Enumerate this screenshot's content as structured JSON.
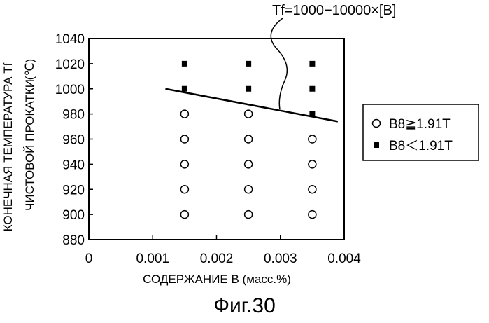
{
  "chart_data": {
    "type": "scatter",
    "xlabel": "СОДЕРЖАНИЕ В (масс.%)",
    "ylabel_line1": "КОНЕЧНАЯ ТЕМПЕРАТУРА Tf",
    "ylabel_line2": "ЧИСТОВОЙ ПРОКАТКИ",
    "ylabel_unit": "(℃)",
    "xlim": [
      0,
      0.004
    ],
    "ylim": [
      880,
      1040
    ],
    "x_ticks": [
      0,
      0.001,
      0.002,
      0.003,
      0.004
    ],
    "x_tick_labels": [
      "0",
      "0.001",
      "0.002",
      "0.003",
      "0.004"
    ],
    "y_ticks": [
      880,
      900,
      920,
      940,
      960,
      980,
      1000,
      1020,
      1040
    ],
    "y_tick_labels": [
      "880",
      "900",
      "920",
      "940",
      "960",
      "980",
      "1000",
      "1020",
      "1040"
    ],
    "series": [
      {
        "name": "B8≧1.91T",
        "marker": "open-circle",
        "points": [
          [
            0.0015,
            900
          ],
          [
            0.0015,
            920
          ],
          [
            0.0015,
            940
          ],
          [
            0.0015,
            960
          ],
          [
            0.0015,
            980
          ],
          [
            0.0025,
            900
          ],
          [
            0.0025,
            920
          ],
          [
            0.0025,
            940
          ],
          [
            0.0025,
            960
          ],
          [
            0.0025,
            980
          ],
          [
            0.0035,
            900
          ],
          [
            0.0035,
            920
          ],
          [
            0.0035,
            940
          ],
          [
            0.0035,
            960
          ]
        ]
      },
      {
        "name": "B8＜1.91T",
        "marker": "filled-square",
        "points": [
          [
            0.0015,
            1000
          ],
          [
            0.0015,
            1020
          ],
          [
            0.0025,
            1000
          ],
          [
            0.0025,
            1020
          ],
          [
            0.0035,
            980
          ],
          [
            0.0035,
            1000
          ],
          [
            0.0035,
            1020
          ]
        ]
      }
    ],
    "boundary_line": {
      "equation": "Tf=1000−10000×[B]",
      "x_start": 0.0012,
      "x_end": 0.0039,
      "y_start": 1000,
      "y_end": 974
    }
  },
  "caption": "Фиг.30"
}
